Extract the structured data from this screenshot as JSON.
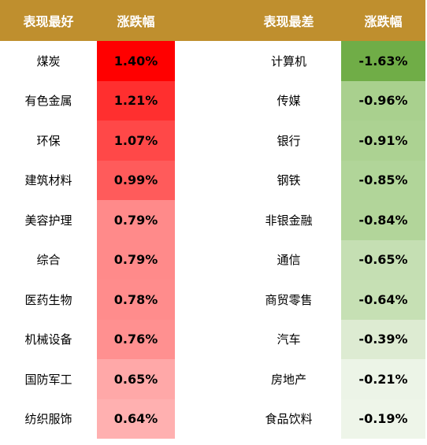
{
  "header": {
    "best_title": "表现最好",
    "best_change": "涨跌幅",
    "worst_title": "表现最差",
    "worst_change": "涨跌幅"
  },
  "best": [
    {
      "name": "煤炭",
      "change": "1.40%",
      "color": "#FF0000"
    },
    {
      "name": "有色金属",
      "change": "1.21%",
      "color": "#FF2F2F"
    },
    {
      "name": "环保",
      "change": "1.07%",
      "color": "#FF4848"
    },
    {
      "name": "建筑材料",
      "change": "0.99%",
      "color": "#FF5B5B"
    },
    {
      "name": "美容护理",
      "change": "0.79%",
      "color": "#FF8A8A"
    },
    {
      "name": "综合",
      "change": "0.79%",
      "color": "#FF8A8A"
    },
    {
      "name": "医药生物",
      "change": "0.78%",
      "color": "#FF8C8C"
    },
    {
      "name": "机械设备",
      "change": "0.76%",
      "color": "#FF9090"
    },
    {
      "name": "国防军工",
      "change": "0.65%",
      "color": "#FFA8A8"
    },
    {
      "name": "纺织服饰",
      "change": "0.64%",
      "color": "#FFB0B0"
    }
  ],
  "worst": [
    {
      "name": "计算机",
      "change": "-1.63%",
      "color": "#70AD47"
    },
    {
      "name": "传媒",
      "change": "-0.96%",
      "color": "#A9D08E"
    },
    {
      "name": "银行",
      "change": "-0.91%",
      "color": "#ACD292"
    },
    {
      "name": "钢铁",
      "change": "-0.85%",
      "color": "#B1D599"
    },
    {
      "name": "非银金融",
      "change": "-0.84%",
      "color": "#B2D59A"
    },
    {
      "name": "通信",
      "change": "-0.65%",
      "color": "#C5DFB3"
    },
    {
      "name": "商贸零售",
      "change": "-0.64%",
      "color": "#C6E0B4"
    },
    {
      "name": "汽车",
      "change": "-0.39%",
      "color": "#DDEBD2"
    },
    {
      "name": "房地产",
      "change": "-0.21%",
      "color": "#ECF4E7"
    },
    {
      "name": "食品饮料",
      "change": "-0.19%",
      "color": "#EEF5E9"
    }
  ]
}
